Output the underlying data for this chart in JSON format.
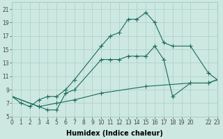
{
  "xlabel": "Humidex (Indice chaleur)",
  "bg_color": "#cce8e0",
  "grid_color": "#aacfc8",
  "line_color": "#1a6b5e",
  "series": [
    {
      "x": [
        0,
        1,
        2,
        3,
        4,
        5,
        6,
        7,
        10,
        11,
        12,
        13,
        14,
        15,
        16,
        17,
        18,
        20,
        22,
        23
      ],
      "y": [
        8,
        7,
        6.5,
        7.5,
        8,
        8,
        9,
        10.5,
        15.5,
        17,
        17.5,
        19.5,
        19.5,
        20.5,
        19,
        16,
        15.5,
        15.5,
        11.5,
        10.5
      ]
    },
    {
      "x": [
        0,
        3,
        4,
        5,
        6,
        7,
        10,
        11,
        12,
        13,
        14,
        15,
        16,
        17,
        18,
        20,
        22,
        23
      ],
      "y": [
        8,
        6.5,
        6,
        6,
        8.5,
        9,
        13.5,
        13.5,
        13.5,
        14,
        14,
        14,
        15.5,
        13.5,
        8,
        10,
        10,
        10.5
      ]
    },
    {
      "x": [
        0,
        3,
        5,
        7,
        10,
        15,
        20,
        22,
        23
      ],
      "y": [
        8,
        6.5,
        7,
        7.5,
        8.5,
        9.5,
        10,
        10,
        10.5
      ]
    }
  ],
  "xlim": [
    0,
    23
  ],
  "ylim": [
    5,
    22
  ],
  "xticks": [
    0,
    1,
    2,
    3,
    4,
    5,
    6,
    7,
    8,
    9,
    10,
    11,
    12,
    13,
    14,
    15,
    16,
    17,
    18,
    19,
    20,
    22,
    23
  ],
  "xtick_labels": [
    "0",
    "1",
    "2",
    "3",
    "4",
    "5",
    "6",
    "7",
    "8",
    "9",
    "10",
    "11",
    "12",
    "13",
    "14",
    "15",
    "16",
    "17",
    "18",
    "19",
    "20",
    "22",
    "23"
  ],
  "yticks": [
    5,
    7,
    9,
    11,
    13,
    15,
    17,
    19,
    21
  ],
  "ytick_labels": [
    "5",
    "7",
    "9",
    "11",
    "13",
    "15",
    "17",
    "19",
    "21"
  ],
  "marker": "+",
  "markersize": 4,
  "linewidth": 0.8,
  "tick_fontsize": 5.5,
  "xlabel_fontsize": 7
}
